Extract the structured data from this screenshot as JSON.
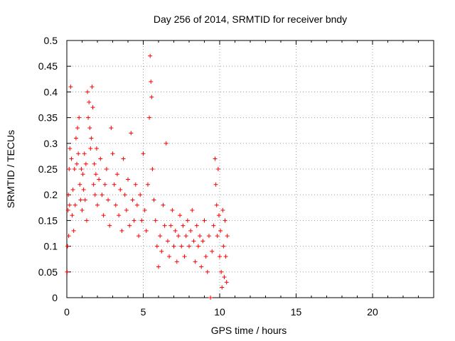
{
  "chart_data": {
    "type": "scatter",
    "title": "Day 256 of 2014, SRMTID for receiver bndy",
    "xlabel": "GPS time / hours",
    "ylabel": "SRMTID / TECUs",
    "xlim": [
      0,
      24
    ],
    "ylim": [
      0,
      0.5
    ],
    "x_ticks": [
      0,
      5,
      10,
      15,
      20
    ],
    "x_tick_labels": [
      "0",
      "5",
      "10",
      "15",
      "20"
    ],
    "y_ticks": [
      0,
      0.05,
      0.1,
      0.15,
      0.2,
      0.25,
      0.3,
      0.35,
      0.4,
      0.45,
      0.5
    ],
    "y_tick_labels": [
      "0",
      "0.05",
      "0.1",
      "0.15",
      "0.2",
      "0.25",
      "0.3",
      "0.35",
      "0.4",
      "0.45",
      "0.5"
    ],
    "grid": true,
    "marker": "+",
    "marker_color": "#ff0000",
    "series": [
      {
        "name": "SRMTID",
        "points": [
          [
            0.02,
            0.05
          ],
          [
            0.05,
            0.1
          ],
          [
            0.08,
            0.17
          ],
          [
            0.1,
            0.2
          ],
          [
            0.12,
            0.12
          ],
          [
            0.15,
            0.25
          ],
          [
            0.18,
            0.18
          ],
          [
            0.2,
            0.29
          ],
          [
            0.25,
            0.41
          ],
          [
            0.3,
            0.27
          ],
          [
            0.35,
            0.16
          ],
          [
            0.4,
            0.21
          ],
          [
            0.45,
            0.13
          ],
          [
            0.5,
            0.25
          ],
          [
            0.55,
            0.18
          ],
          [
            0.6,
            0.31
          ],
          [
            0.65,
            0.26
          ],
          [
            0.7,
            0.33
          ],
          [
            0.75,
            0.28
          ],
          [
            0.8,
            0.35
          ],
          [
            0.85,
            0.22
          ],
          [
            0.9,
            0.19
          ],
          [
            0.95,
            0.25
          ],
          [
            1.0,
            0.17
          ],
          [
            1.05,
            0.24
          ],
          [
            1.1,
            0.21
          ],
          [
            1.15,
            0.28
          ],
          [
            1.2,
            0.19
          ],
          [
            1.25,
            0.26
          ],
          [
            1.3,
            0.15
          ],
          [
            1.35,
            0.4
          ],
          [
            1.4,
            0.35
          ],
          [
            1.45,
            0.38
          ],
          [
            1.5,
            0.33
          ],
          [
            1.55,
            0.29
          ],
          [
            1.6,
            0.31
          ],
          [
            1.65,
            0.41
          ],
          [
            1.7,
            0.37
          ],
          [
            1.75,
            0.22
          ],
          [
            1.8,
            0.26
          ],
          [
            1.85,
            0.2
          ],
          [
            1.9,
            0.24
          ],
          [
            1.95,
            0.29
          ],
          [
            2.0,
            0.18
          ],
          [
            2.1,
            0.23
          ],
          [
            2.2,
            0.27
          ],
          [
            2.3,
            0.2
          ],
          [
            2.4,
            0.16
          ],
          [
            2.5,
            0.22
          ],
          [
            2.6,
            0.25
          ],
          [
            2.7,
            0.19
          ],
          [
            2.8,
            0.14
          ],
          [
            2.9,
            0.33
          ],
          [
            3.0,
            0.28
          ],
          [
            3.1,
            0.22
          ],
          [
            3.2,
            0.18
          ],
          [
            3.3,
            0.24
          ],
          [
            3.4,
            0.16
          ],
          [
            3.5,
            0.21
          ],
          [
            3.6,
            0.13
          ],
          [
            3.7,
            0.27
          ],
          [
            3.8,
            0.2
          ],
          [
            3.9,
            0.17
          ],
          [
            4.0,
            0.23
          ],
          [
            4.1,
            0.14
          ],
          [
            4.2,
            0.32
          ],
          [
            4.3,
            0.19
          ],
          [
            4.4,
            0.15
          ],
          [
            4.5,
            0.22
          ],
          [
            4.6,
            0.18
          ],
          [
            4.7,
            0.12
          ],
          [
            4.8,
            0.2
          ],
          [
            4.9,
            0.15
          ],
          [
            5.0,
            0.28
          ],
          [
            5.1,
            0.17
          ],
          [
            5.2,
            0.13
          ],
          [
            5.3,
            0.22
          ],
          [
            5.4,
            0.35
          ],
          [
            5.45,
            0.47
          ],
          [
            5.5,
            0.42
          ],
          [
            5.55,
            0.39
          ],
          [
            5.6,
            0.25
          ],
          [
            5.7,
            0.19
          ],
          [
            5.8,
            0.15
          ],
          [
            5.9,
            0.1
          ],
          [
            6.0,
            0.06
          ],
          [
            6.1,
            0.12
          ],
          [
            6.2,
            0.09
          ],
          [
            6.3,
            0.18
          ],
          [
            6.4,
            0.14
          ],
          [
            6.5,
            0.3
          ],
          [
            6.6,
            0.11
          ],
          [
            6.7,
            0.08
          ],
          [
            6.8,
            0.14
          ],
          [
            6.9,
            0.17
          ],
          [
            7.0,
            0.1
          ],
          [
            7.1,
            0.13
          ],
          [
            7.2,
            0.07
          ],
          [
            7.3,
            0.12
          ],
          [
            7.4,
            0.16
          ],
          [
            7.5,
            0.1
          ],
          [
            7.6,
            0.14
          ],
          [
            7.7,
            0.08
          ],
          [
            7.8,
            0.12
          ],
          [
            7.9,
            0.15
          ],
          [
            8.0,
            0.1
          ],
          [
            8.1,
            0.13
          ],
          [
            8.2,
            0.17
          ],
          [
            8.3,
            0.11
          ],
          [
            8.4,
            0.07
          ],
          [
            8.5,
            0.14
          ],
          [
            8.6,
            0.1
          ],
          [
            8.7,
            0.12
          ],
          [
            8.8,
            0.06
          ],
          [
            8.9,
            0.11
          ],
          [
            9.0,
            0.15
          ],
          [
            9.1,
            0.08
          ],
          [
            9.2,
            0.05
          ],
          [
            9.3,
            0.12
          ],
          [
            9.4,
            0.0
          ],
          [
            9.5,
            0.09
          ],
          [
            9.6,
            0.14
          ],
          [
            9.7,
            0.27
          ],
          [
            9.75,
            0.22
          ],
          [
            9.8,
            0.18
          ],
          [
            9.85,
            0.12
          ],
          [
            9.9,
            0.25
          ],
          [
            9.95,
            0.16
          ],
          [
            10.0,
            0.08
          ],
          [
            10.05,
            0.13
          ],
          [
            10.1,
            0.05
          ],
          [
            10.15,
            0.02
          ],
          [
            10.2,
            0.17
          ],
          [
            10.25,
            0.1
          ],
          [
            10.3,
            0.04
          ],
          [
            10.35,
            0.15
          ],
          [
            10.4,
            0.08
          ],
          [
            10.45,
            0.03
          ],
          [
            10.5,
            0.12
          ]
        ]
      }
    ]
  }
}
